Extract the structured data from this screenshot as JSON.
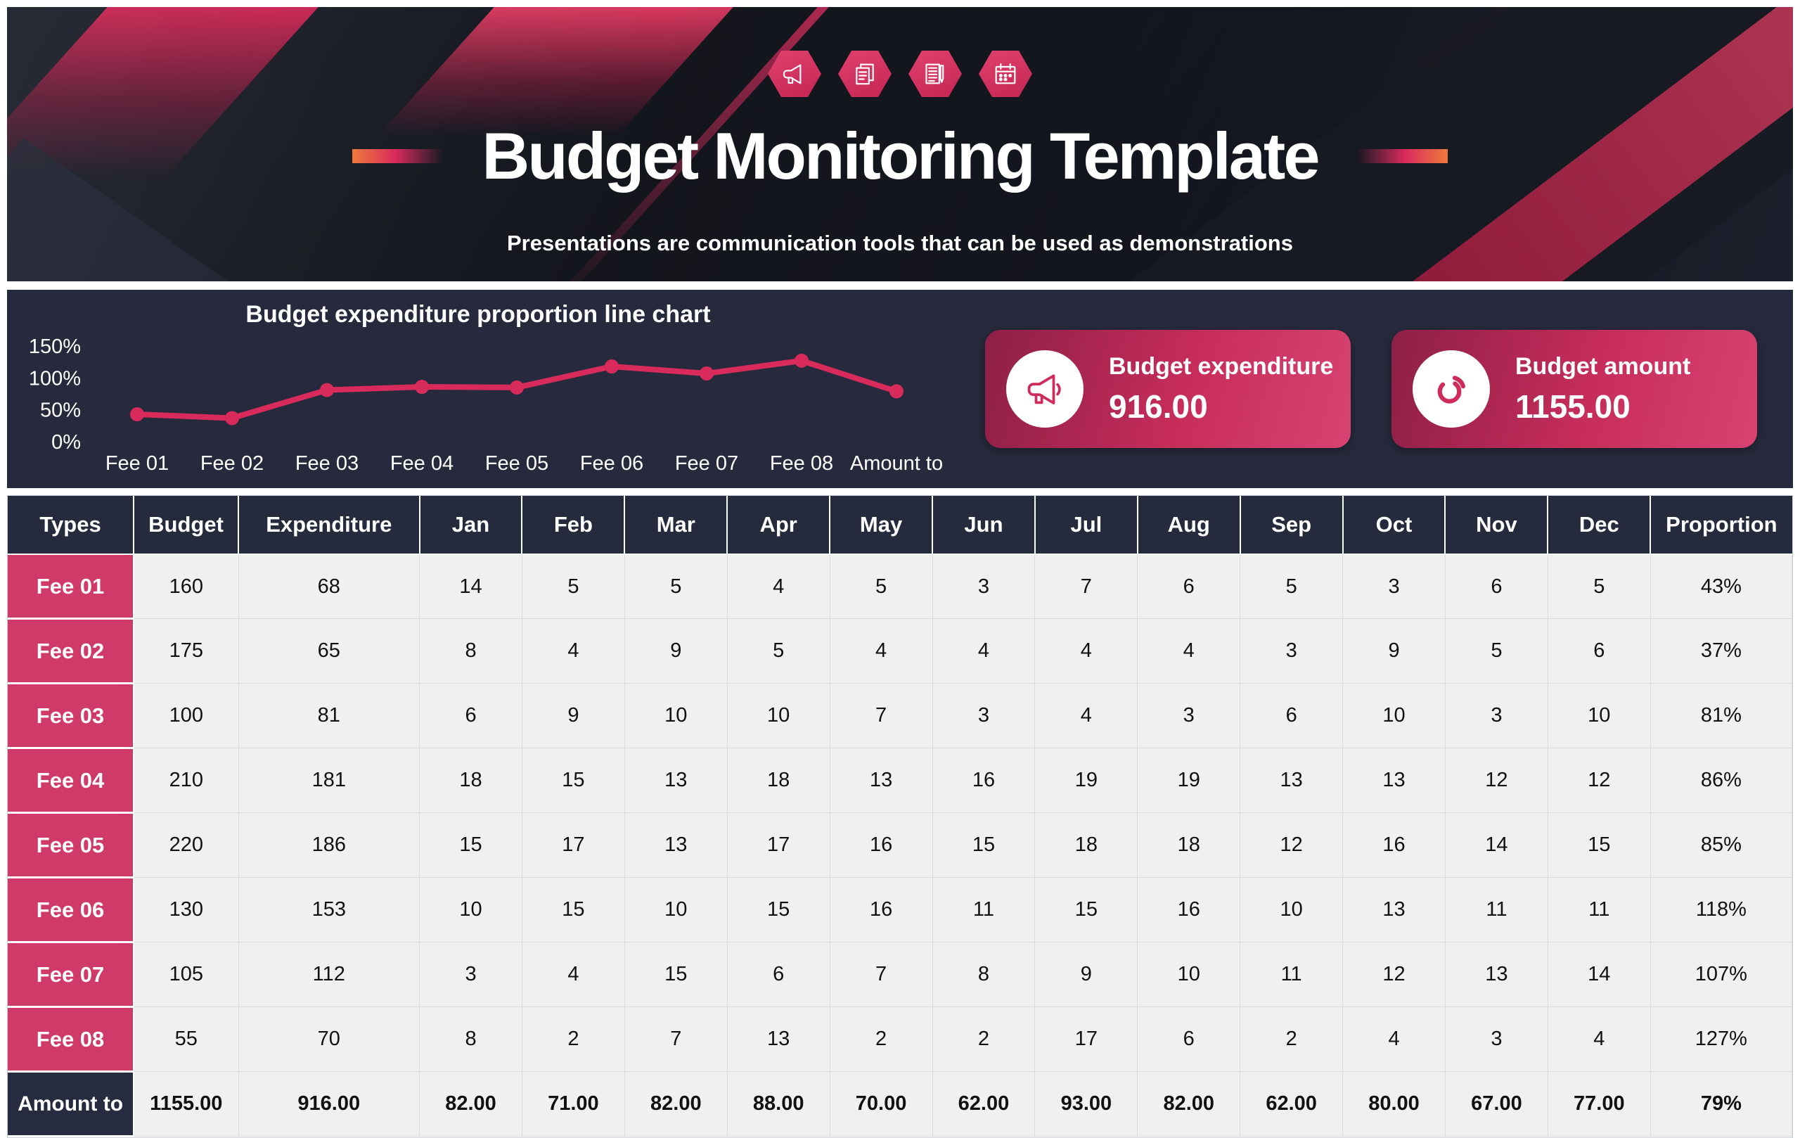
{
  "header": {
    "title": "Budget Monitoring Template",
    "subtitle": "Presentations are communication tools that can be used as demonstrations",
    "icons": [
      "megaphone-icon",
      "documents-icon",
      "document-pencil-icon",
      "calendar-icon"
    ],
    "accent_pink": "#d03a69",
    "accent_orange": "#ee7a3c",
    "background_dark": "#171922"
  },
  "chart_data": {
    "type": "line",
    "title": "Budget expenditure proportion line chart",
    "categories": [
      "Fee 01",
      "Fee 02",
      "Fee 03",
      "Fee 04",
      "Fee 05",
      "Fee 06",
      "Fee 07",
      "Fee 08",
      "Amount to"
    ],
    "values_pct": [
      43,
      37,
      81,
      86,
      85,
      118,
      107,
      127,
      79
    ],
    "y_ticks": [
      150,
      100,
      50,
      0
    ],
    "y_tick_labels": [
      "150%",
      "100%",
      "50%",
      "0%"
    ],
    "ylim": [
      0,
      150
    ],
    "grid": false,
    "legend": "none",
    "line_color": "#d92a5c",
    "panel_color": "#262a3c"
  },
  "cards": [
    {
      "label": "Budget expenditure",
      "value": "916.00",
      "icon": "megaphone-icon"
    },
    {
      "label": "Budget amount",
      "value": "1155.00",
      "icon": "pie-chart-icon"
    }
  ],
  "table": {
    "columns": [
      "Types",
      "Budget",
      "Expenditure",
      "Jan",
      "Feb",
      "Mar",
      "Apr",
      "May",
      "Jun",
      "Jul",
      "Aug",
      "Sep",
      "Oct",
      "Nov",
      "Dec",
      "Proportion"
    ],
    "rows": [
      {
        "type": "Fee 01",
        "cells": [
          "160",
          "68",
          "14",
          "5",
          "5",
          "4",
          "5",
          "3",
          "7",
          "6",
          "5",
          "3",
          "6",
          "5",
          "43%"
        ],
        "is_total": false
      },
      {
        "type": "Fee 02",
        "cells": [
          "175",
          "65",
          "8",
          "4",
          "9",
          "5",
          "4",
          "4",
          "4",
          "4",
          "3",
          "9",
          "5",
          "6",
          "37%"
        ],
        "is_total": false
      },
      {
        "type": "Fee 03",
        "cells": [
          "100",
          "81",
          "6",
          "9",
          "10",
          "10",
          "7",
          "3",
          "4",
          "3",
          "6",
          "10",
          "3",
          "10",
          "81%"
        ],
        "is_total": false
      },
      {
        "type": "Fee 04",
        "cells": [
          "210",
          "181",
          "18",
          "15",
          "13",
          "18",
          "13",
          "16",
          "19",
          "19",
          "13",
          "13",
          "12",
          "12",
          "86%"
        ],
        "is_total": false
      },
      {
        "type": "Fee 05",
        "cells": [
          "220",
          "186",
          "15",
          "17",
          "13",
          "17",
          "16",
          "15",
          "18",
          "18",
          "12",
          "16",
          "14",
          "15",
          "85%"
        ],
        "is_total": false
      },
      {
        "type": "Fee 06",
        "cells": [
          "130",
          "153",
          "10",
          "15",
          "10",
          "15",
          "16",
          "11",
          "15",
          "16",
          "10",
          "13",
          "11",
          "11",
          "118%"
        ],
        "is_total": false
      },
      {
        "type": "Fee 07",
        "cells": [
          "105",
          "112",
          "3",
          "4",
          "15",
          "6",
          "7",
          "8",
          "9",
          "10",
          "11",
          "12",
          "13",
          "14",
          "107%"
        ],
        "is_total": false
      },
      {
        "type": "Fee 08",
        "cells": [
          "55",
          "70",
          "8",
          "2",
          "7",
          "13",
          "2",
          "2",
          "17",
          "6",
          "2",
          "4",
          "3",
          "4",
          "127%"
        ],
        "is_total": false
      },
      {
        "type": "Amount to",
        "cells": [
          "1155.00",
          "916.00",
          "82.00",
          "71.00",
          "82.00",
          "88.00",
          "70.00",
          "62.00",
          "93.00",
          "82.00",
          "62.00",
          "80.00",
          "67.00",
          "77.00",
          "79%"
        ],
        "is_total": true
      }
    ]
  }
}
